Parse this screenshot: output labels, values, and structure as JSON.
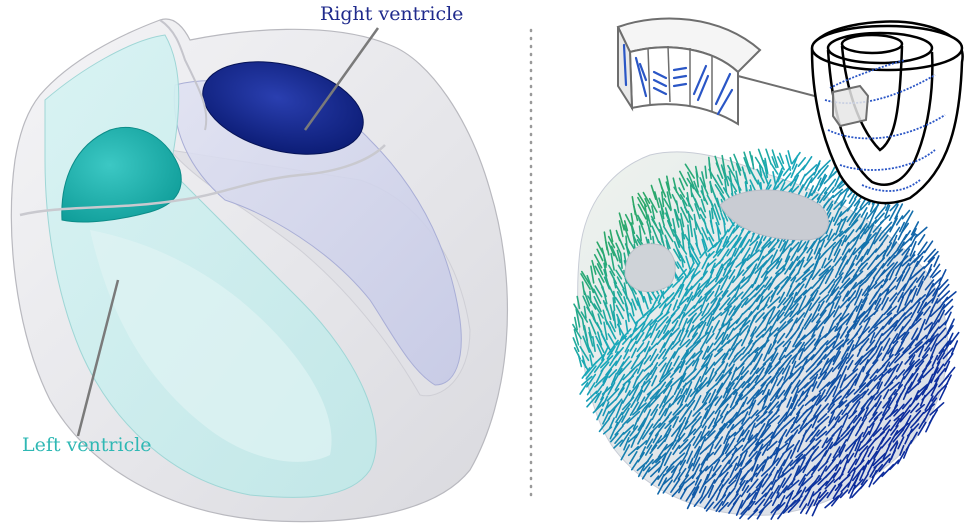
{
  "labels": {
    "right_ventricle": "Right ventricle",
    "left_ventricle": "Left ventricle"
  },
  "colors": {
    "right_ventricle_text": "#1f2a8c",
    "left_ventricle_text": "#2fb8b4",
    "rv_cavity": "#0b1f8a",
    "lv_cavity": "#19b5b0",
    "lv_shell": "#c7eeee",
    "rv_shell": "#c9cde9",
    "outer_surface": "#e9e9ec",
    "fiber_green": "#3aa82a",
    "fiber_teal": "#19a9b9",
    "fiber_blue": "#0c2c9c",
    "divider": "#9a9a9a"
  }
}
